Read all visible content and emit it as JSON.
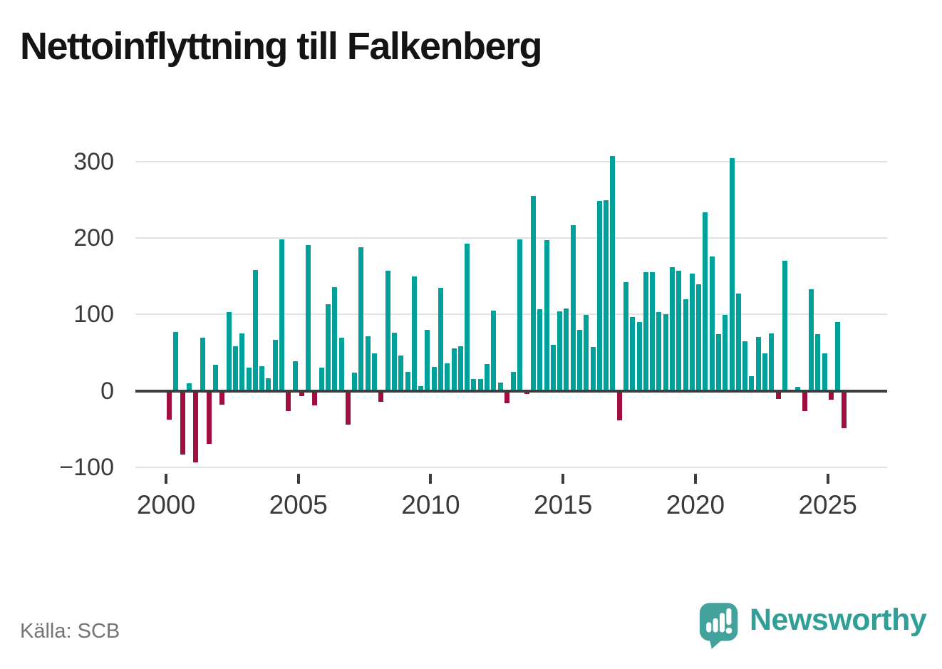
{
  "title": "Nettoinflyttning till Falkenberg",
  "source": "Källa: SCB",
  "branding": {
    "name": "Newsworthy",
    "logo_icon": "speech-bubble-bar-chart-exclamation-icon"
  },
  "colors": {
    "positive": "#00a09b",
    "negative": "#a00d3f",
    "axis": "#3d3d3d",
    "grid": "#e2e2e2",
    "tick_text": "#3a3a3a",
    "muted_text": "#757575",
    "brand": "#2f9f97",
    "title_text": "#141414"
  },
  "chart_data": {
    "type": "bar",
    "title": "Nettoinflyttning till Falkenberg",
    "xlabel": "",
    "ylabel": "",
    "frequency": "quarterly",
    "start": {
      "year": 2000,
      "quarter": 1
    },
    "end": {
      "year": 2025,
      "quarter": 3
    },
    "values": [
      -38,
      77,
      -83,
      10,
      -94,
      69,
      -69,
      34,
      -18,
      103,
      58,
      75,
      30,
      158,
      32,
      16,
      67,
      198,
      -27,
      39,
      -7,
      191,
      -19,
      30,
      113,
      136,
      69,
      -44,
      24,
      188,
      71,
      49,
      -14,
      157,
      76,
      46,
      25,
      150,
      6,
      80,
      31,
      135,
      36,
      55,
      58,
      192,
      15,
      15,
      35,
      105,
      11,
      -16,
      25,
      198,
      -4,
      255,
      107,
      197,
      60,
      104,
      108,
      217,
      80,
      99,
      57,
      248,
      249,
      307,
      -39,
      142,
      96,
      90,
      155,
      155,
      103,
      100,
      162,
      157,
      120,
      153,
      139,
      233,
      176,
      74,
      99,
      304,
      127,
      65,
      19,
      70,
      49,
      75,
      -11,
      170,
      0,
      5,
      -27,
      133,
      74,
      49,
      -12,
      90,
      -49
    ],
    "y_ticks": [
      {
        "value": 300,
        "label": "300"
      },
      {
        "value": 200,
        "label": "200"
      },
      {
        "value": 100,
        "label": "100"
      },
      {
        "value": 0,
        "label": "0"
      },
      {
        "value": -100,
        "label": "−100"
      }
    ],
    "x_ticks": [
      {
        "year": 2000,
        "label": "2000"
      },
      {
        "year": 2005,
        "label": "2005"
      },
      {
        "year": 2010,
        "label": "2010"
      },
      {
        "year": 2015,
        "label": "2015"
      },
      {
        "year": 2020,
        "label": "2020"
      },
      {
        "year": 2025,
        "label": "2025"
      }
    ],
    "ylim": [
      -100,
      320
    ],
    "grid": true,
    "legend": "none"
  }
}
